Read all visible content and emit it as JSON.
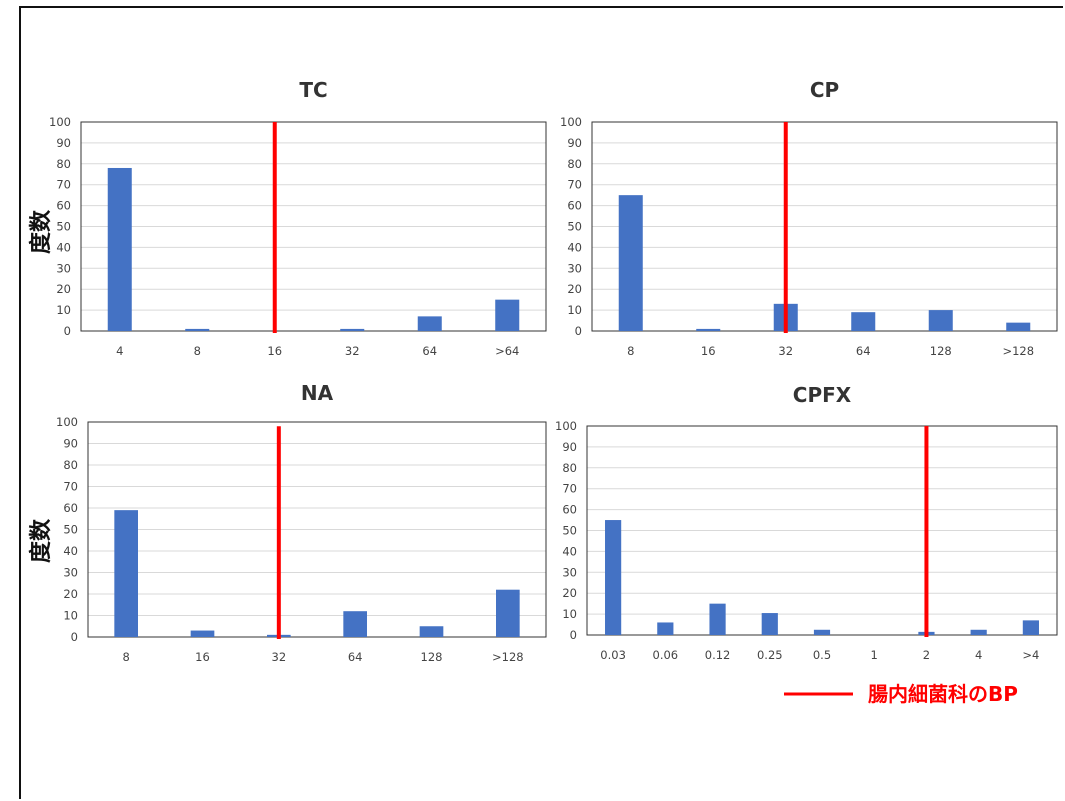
{
  "y_axis_label": "度数",
  "legend": {
    "label": "腸内細菌科のBP",
    "color": "#ff0000"
  },
  "bar_color": "#4472c4",
  "bp_line_color": "#ff0000",
  "chart_data": [
    {
      "type": "bar",
      "title": "TC",
      "categories": [
        "4",
        "8",
        "16",
        "32",
        "64",
        ">64"
      ],
      "values": [
        78,
        1,
        0,
        1,
        7,
        15
      ],
      "ylim": [
        0,
        100
      ],
      "yticks": [
        0,
        10,
        20,
        30,
        40,
        50,
        60,
        70,
        80,
        90,
        100
      ],
      "grid": true,
      "breakpoint_category": "16",
      "breakpoint_top": 100
    },
    {
      "type": "bar",
      "title": "CP",
      "categories": [
        "8",
        "16",
        "32",
        "64",
        "128",
        ">128"
      ],
      "values": [
        65,
        1,
        13,
        9,
        10,
        4
      ],
      "ylim": [
        0,
        100
      ],
      "yticks": [
        0,
        10,
        20,
        30,
        40,
        50,
        60,
        70,
        80,
        90,
        100
      ],
      "grid": true,
      "breakpoint_category": "32",
      "breakpoint_top": 100
    },
    {
      "type": "bar",
      "title": "NA",
      "categories": [
        "8",
        "16",
        "32",
        "64",
        "128",
        ">128"
      ],
      "values": [
        59,
        3,
        1,
        12,
        5,
        22
      ],
      "ylim": [
        0,
        100
      ],
      "yticks": [
        0,
        10,
        20,
        30,
        40,
        50,
        60,
        70,
        80,
        90,
        100
      ],
      "grid": true,
      "breakpoint_category": "32",
      "breakpoint_top": 98
    },
    {
      "type": "bar",
      "title": "CPFX",
      "categories": [
        "0.03",
        "0.06",
        "0.12",
        "0.25",
        "0.5",
        "1",
        "2",
        "4",
        ">4"
      ],
      "values": [
        55,
        6,
        15,
        10.5,
        2.5,
        0,
        1.5,
        2.5,
        7
      ],
      "ylim": [
        0,
        100
      ],
      "yticks": [
        0,
        10,
        20,
        30,
        40,
        50,
        60,
        70,
        80,
        90,
        100
      ],
      "grid": true,
      "breakpoint_category": "2",
      "breakpoint_top": 100
    }
  ]
}
